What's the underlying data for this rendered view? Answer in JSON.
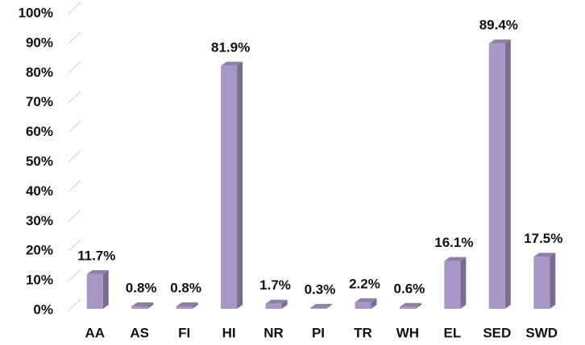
{
  "chart_data": {
    "type": "bar3d",
    "categories": [
      "AA",
      "AS",
      "FI",
      "HI",
      "NR",
      "PI",
      "TR",
      "WH",
      "EL",
      "SED",
      "SWD"
    ],
    "values": [
      11.7,
      0.8,
      0.8,
      81.9,
      1.7,
      0.3,
      2.2,
      0.6,
      16.1,
      89.4,
      17.5
    ],
    "value_labels": [
      "11.7%",
      "0.8%",
      "0.8%",
      "81.9%",
      "1.7%",
      "0.3%",
      "2.2%",
      "0.6%",
      "16.1%",
      "89.4%",
      "17.5%"
    ],
    "color": "#a896c8",
    "ylim": [
      0,
      100
    ],
    "yticks": [
      {
        "value": 0,
        "label": "0%"
      },
      {
        "value": 10,
        "label": "10%"
      },
      {
        "value": 20,
        "label": "20%"
      },
      {
        "value": 30,
        "label": "30%"
      },
      {
        "value": 40,
        "label": "40%"
      },
      {
        "value": 50,
        "label": "50%"
      },
      {
        "value": 60,
        "label": "60%"
      },
      {
        "value": 70,
        "label": "70%"
      },
      {
        "value": 80,
        "label": "80%"
      },
      {
        "value": 90,
        "label": "90%"
      },
      {
        "value": 100,
        "label": "100%"
      }
    ],
    "grid": true
  }
}
